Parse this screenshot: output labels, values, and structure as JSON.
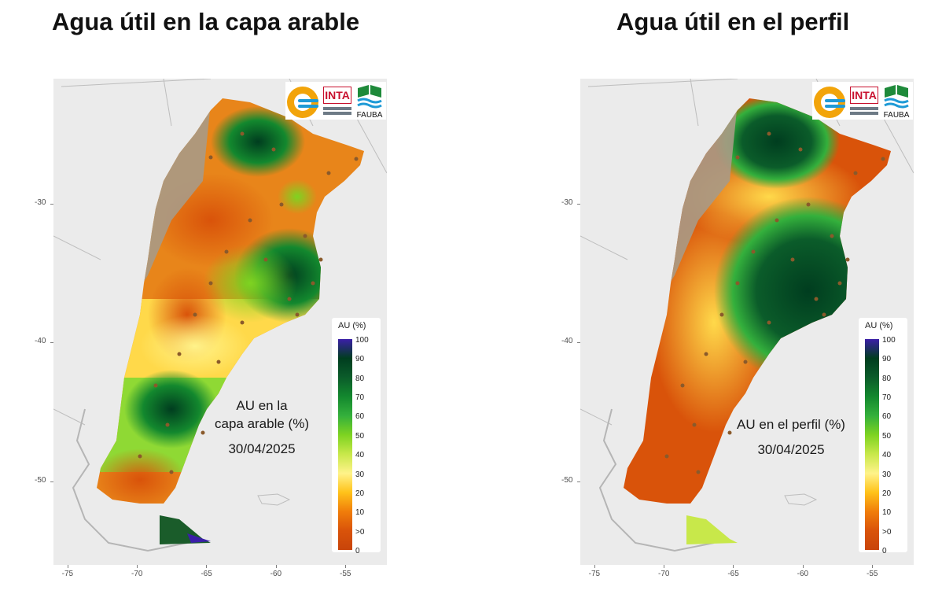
{
  "titles": {
    "left": "Agua útil en la capa arable",
    "right": "Agua útil en el perfil"
  },
  "maps": [
    {
      "annotation_line1": "AU en la",
      "annotation_line2": "capa arable (%)",
      "date": "30/04/2025"
    },
    {
      "annotation_line1": "AU en el perfil (%)",
      "annotation_line2": "",
      "date": "30/04/2025"
    }
  ],
  "axes": {
    "y_ticks": [
      "-30",
      "-40",
      "-50"
    ],
    "x_ticks": [
      "-75",
      "-70",
      "-65",
      "-60",
      "-55"
    ]
  },
  "legend": {
    "title": "AU (%)",
    "labels": [
      "100",
      "90",
      "80",
      "70",
      "60",
      "50",
      "40",
      "30",
      "20",
      "10",
      ">0",
      "0"
    ],
    "colors": [
      "#3b1fa8",
      "#003d1f",
      "#0b5c2a",
      "#13882e",
      "#34b03c",
      "#7ed321",
      "#c8e84a",
      "#fff38a",
      "#ffc21a",
      "#f07d0a",
      "#d9530a",
      "#c8440a"
    ]
  },
  "logos": {
    "inta": "INTA",
    "fauba": "FAUBA"
  },
  "chart_data": [
    {
      "type": "heatmap",
      "title": "Agua útil en la capa arable",
      "xlabel": "",
      "ylabel": "",
      "xlim": [
        -76,
        -52
      ],
      "ylim": [
        -56,
        -21
      ],
      "x_ticks": [
        -75,
        -70,
        -65,
        -60,
        -55
      ],
      "y_ticks": [
        -30,
        -40,
        -50
      ],
      "legend_title": "AU (%)",
      "scale": [
        0,
        100
      ],
      "date": "30/04/2025"
    },
    {
      "type": "heatmap",
      "title": "Agua útil en el perfil",
      "xlabel": "",
      "ylabel": "",
      "xlim": [
        -76,
        -52
      ],
      "ylim": [
        -56,
        -21
      ],
      "x_ticks": [
        -75,
        -70,
        -65,
        -60,
        -55
      ],
      "y_ticks": [
        -30,
        -40,
        -50
      ],
      "legend_title": "AU (%)",
      "scale": [
        0,
        100
      ],
      "date": "30/04/2025"
    }
  ]
}
